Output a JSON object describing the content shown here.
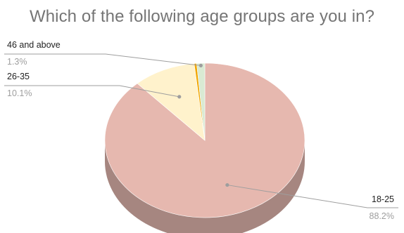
{
  "chart_data": {
    "type": "pie",
    "title": "Which of the following age groups are you in?",
    "slices": [
      {
        "label": "18-25",
        "value": 88.2,
        "percent_text": "88.2%",
        "color": "#e6b8af",
        "side_color": "#a68680"
      },
      {
        "label": "26-35",
        "value": 10.1,
        "percent_text": "10.1%",
        "color": "#fff2cc",
        "side_color": "#b8ad93"
      },
      {
        "label": "",
        "value": 0.4,
        "percent_text": "",
        "color": "#f1a600",
        "side_color": "#a87500"
      },
      {
        "label": "46 and above",
        "value": 1.3,
        "percent_text": "1.3%",
        "color": "#d9ead3",
        "side_color": "#9aa896"
      }
    ],
    "style": "3d",
    "legend": "none",
    "label_placement": "callouts"
  }
}
